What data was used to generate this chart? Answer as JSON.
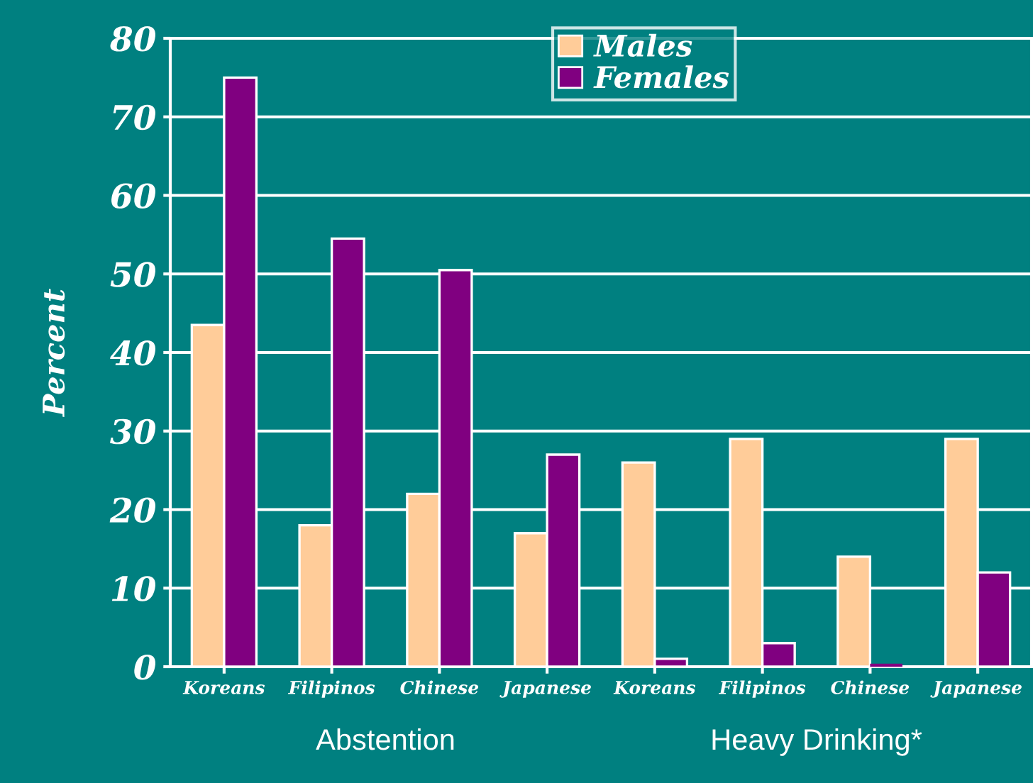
{
  "chart_data": {
    "type": "bar",
    "ylabel": "Percent",
    "categories": [
      "Koreans",
      "Filipinos",
      "Chinese",
      "Japanese",
      "Koreans",
      "Filipinos",
      "Chinese",
      "Japanese"
    ],
    "series": [
      {
        "name": "Males",
        "color": "#ffcc99",
        "values": [
          43.5,
          18,
          22,
          17,
          26,
          29,
          14,
          29
        ]
      },
      {
        "name": "Females",
        "color": "#800080",
        "values": [
          75,
          54.5,
          50.5,
          27,
          1,
          3,
          0,
          12
        ]
      }
    ],
    "ylim": [
      0,
      80
    ],
    "yticks": [
      0,
      10,
      20,
      30,
      40,
      50,
      60,
      70,
      80
    ],
    "grid": "y",
    "legend": "top",
    "annotations": [
      "Abstention",
      "Heavy Drinking*"
    ]
  }
}
